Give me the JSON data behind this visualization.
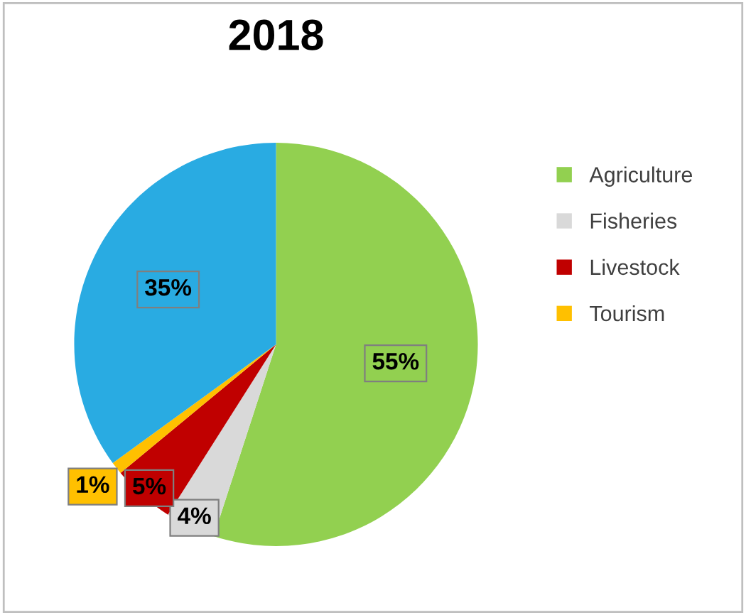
{
  "chart_data": {
    "type": "pie",
    "title": "2018",
    "categories": [
      "Agriculture",
      "Fisheries",
      "Livestock",
      "Tourism",
      null
    ],
    "values": [
      55,
      4,
      5,
      1,
      35
    ],
    "colors": [
      "#92d050",
      "#d9d9d9",
      "#c00000",
      "#ffc000",
      "#29abe2"
    ],
    "value_labels": [
      "55%",
      "4%",
      "5%",
      "1%",
      "35%"
    ],
    "legend": "right"
  }
}
